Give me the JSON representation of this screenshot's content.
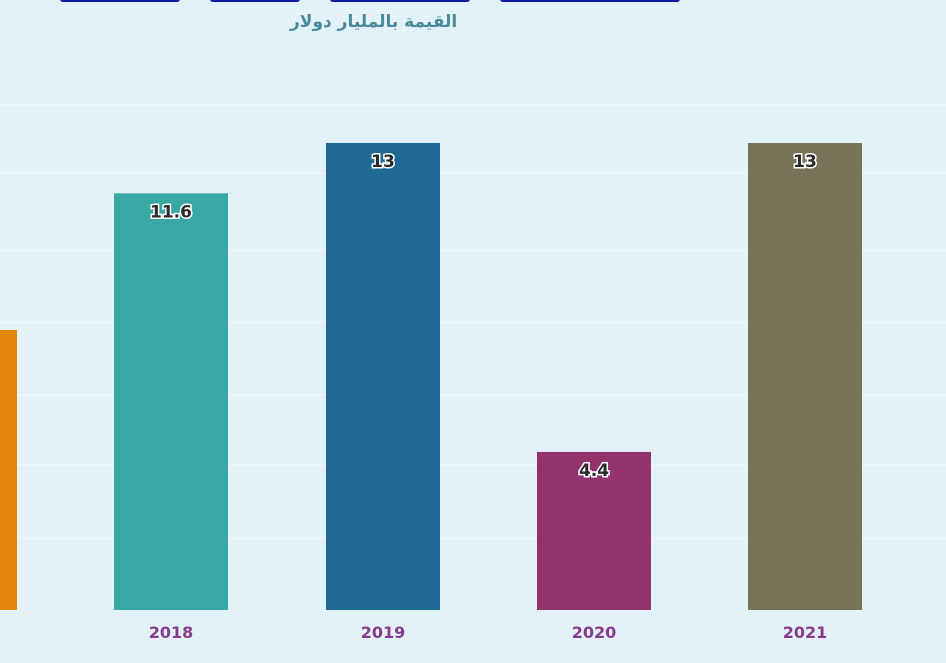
{
  "subtitle": "القيمة بالمليار دولار",
  "chart_data": {
    "type": "bar",
    "title": "",
    "subtitle": "القيمة بالمليار دولار",
    "categories": [
      "2018",
      "2019",
      "2020",
      "2021"
    ],
    "values": [
      11.6,
      13,
      4.4,
      13
    ],
    "value_labels": [
      "11.6",
      "13",
      "4.4",
      "13"
    ],
    "colors": [
      "#38a8a4",
      "#1e6a94",
      "#93336e",
      "#77745a"
    ],
    "accent_left_bar_color": "#e4860b",
    "xlabel": "",
    "ylabel": "",
    "ylim": [
      0,
      16.5
    ],
    "grid": true,
    "legend": "none"
  }
}
